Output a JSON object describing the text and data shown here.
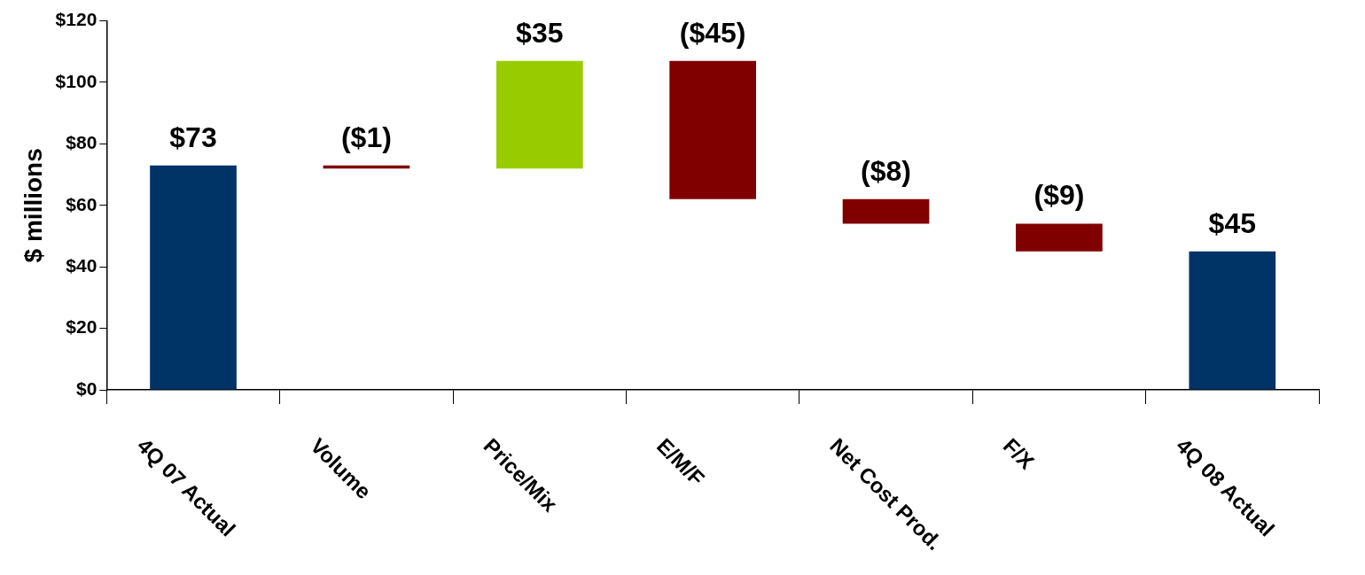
{
  "chart_data": {
    "type": "bar",
    "ylabel": "$ millions",
    "categories": [
      "4Q 07 Actual",
      "Volume",
      "Price/Mix",
      "E/M/F",
      "Net Cost Prod.",
      "F/X",
      "4Q 08 Actual"
    ],
    "values": [
      73,
      -1,
      35,
      -45,
      -8,
      -9,
      45
    ],
    "base": [
      0,
      73,
      72,
      107,
      62,
      54,
      0
    ],
    "colors": [
      "#003366",
      "#800000",
      "#99cc00",
      "#800000",
      "#800000",
      "#800000",
      "#003366"
    ],
    "value_labels": [
      "$73",
      "($1)",
      "$35",
      "($45)",
      "($8)",
      "($9)",
      "$45"
    ],
    "ylim": [
      0,
      120
    ],
    "yticks": [
      {
        "value": 0,
        "label": "$0"
      },
      {
        "value": 20,
        "label": "$20"
      },
      {
        "value": 40,
        "label": "$40"
      },
      {
        "value": 60,
        "label": "$60"
      },
      {
        "value": 80,
        "label": "$80"
      },
      {
        "value": 100,
        "label": "$100"
      },
      {
        "value": 120,
        "label": "$120"
      }
    ],
    "grid": false,
    "legend": false
  }
}
